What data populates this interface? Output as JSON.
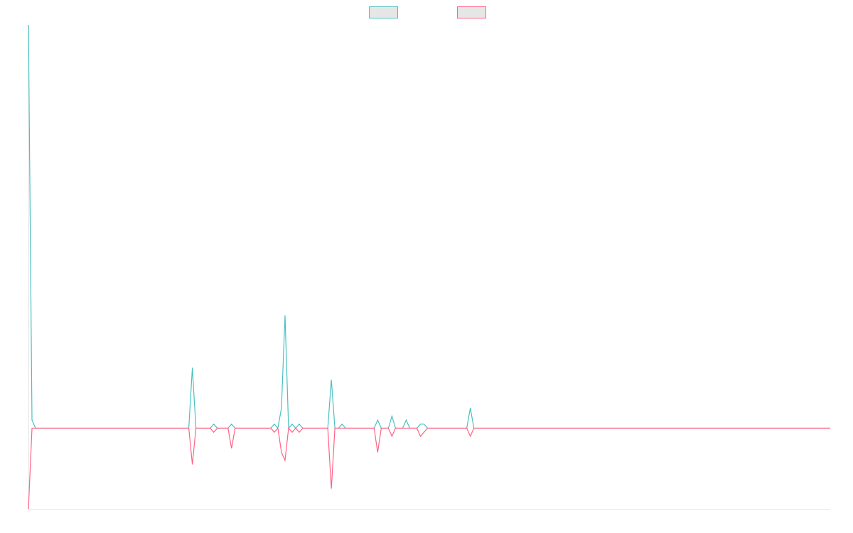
{
  "chart_data": {
    "type": "line",
    "ylim": [
      -20,
      100
    ],
    "legend": "top",
    "series": [
      {
        "color": "#4bc0c0",
        "values": [
          100,
          2,
          0,
          0,
          0,
          0,
          0,
          0,
          0,
          0,
          0,
          0,
          0,
          0,
          0,
          0,
          0,
          0,
          0,
          0,
          0,
          0,
          0,
          0,
          0,
          0,
          0,
          0,
          0,
          0,
          0,
          0,
          0,
          0,
          0,
          0,
          0,
          0,
          0,
          0,
          0,
          0,
          0,
          0,
          0,
          0,
          15,
          0,
          0,
          0,
          0,
          0,
          1,
          0,
          0,
          0,
          0,
          1,
          0,
          0,
          0,
          0,
          0,
          0,
          0,
          0,
          0,
          0,
          0,
          1,
          0,
          5,
          28,
          0,
          1,
          0,
          1,
          0,
          0,
          0,
          0,
          0,
          0,
          0,
          0,
          12,
          0,
          0,
          1,
          0,
          0,
          0,
          0,
          0,
          0,
          0,
          0,
          0,
          2,
          0,
          0,
          0,
          3,
          0,
          0,
          0,
          2,
          0,
          0,
          0,
          1,
          1,
          0,
          0,
          0,
          0,
          0,
          0,
          0,
          0,
          0,
          0,
          0,
          0,
          5,
          0,
          0,
          0,
          0,
          0,
          0,
          0,
          0,
          0,
          0,
          0,
          0,
          0,
          0,
          0,
          0,
          0,
          0,
          0,
          0,
          0,
          0,
          0,
          0,
          0,
          0,
          0,
          0,
          0,
          0,
          0,
          0,
          0,
          0,
          0,
          0,
          0,
          0,
          0,
          0,
          0,
          0,
          0,
          0,
          0,
          0,
          0,
          0,
          0,
          0,
          0,
          0,
          0,
          0,
          0,
          0,
          0,
          0,
          0,
          0,
          0,
          0,
          0,
          0,
          0,
          0,
          0,
          0,
          0,
          0,
          0,
          0,
          0,
          0,
          0,
          0,
          0,
          0,
          0,
          0,
          0,
          0,
          0,
          0,
          0,
          0,
          0,
          0,
          0,
          0,
          0,
          0,
          0,
          0,
          0,
          0,
          0,
          0,
          0,
          0,
          0
        ]
      },
      {
        "color": "#ff6384",
        "values": [
          -20,
          0,
          0,
          0,
          0,
          0,
          0,
          0,
          0,
          0,
          0,
          0,
          0,
          0,
          0,
          0,
          0,
          0,
          0,
          0,
          0,
          0,
          0,
          0,
          0,
          0,
          0,
          0,
          0,
          0,
          0,
          0,
          0,
          0,
          0,
          0,
          0,
          0,
          0,
          0,
          0,
          0,
          0,
          0,
          0,
          0,
          -9,
          0,
          0,
          0,
          0,
          0,
          -1,
          0,
          0,
          0,
          0,
          -5,
          0,
          0,
          0,
          0,
          0,
          0,
          0,
          0,
          0,
          0,
          0,
          -1,
          0,
          -6,
          -8,
          0,
          -1,
          0,
          -1,
          0,
          0,
          0,
          0,
          0,
          0,
          0,
          0,
          -15,
          0,
          0,
          0,
          0,
          0,
          0,
          0,
          0,
          0,
          0,
          0,
          0,
          -6,
          0,
          0,
          0,
          -2,
          0,
          0,
          0,
          0,
          0,
          0,
          0,
          -2,
          -1,
          0,
          0,
          0,
          0,
          0,
          0,
          0,
          0,
          0,
          0,
          0,
          0,
          -2,
          0,
          0,
          0,
          0,
          0,
          0,
          0,
          0,
          0,
          0,
          0,
          0,
          0,
          0,
          0,
          0,
          0,
          0,
          0,
          0,
          0,
          0,
          0,
          0,
          0,
          0,
          0,
          0,
          0,
          0,
          0,
          0,
          0,
          0,
          0,
          0,
          0,
          0,
          0,
          0,
          0,
          0,
          0,
          0,
          0,
          0,
          0,
          0,
          0,
          0,
          0,
          0,
          0,
          0,
          0,
          0,
          0,
          0,
          0,
          0,
          0,
          0,
          0,
          0,
          0,
          0,
          0,
          0,
          0,
          0,
          0,
          0,
          0,
          0,
          0,
          0,
          0,
          0,
          0,
          0,
          0,
          0,
          0,
          0,
          0,
          0,
          0,
          0,
          0,
          0,
          0,
          0,
          0,
          0,
          0,
          0,
          0,
          0,
          0,
          0,
          0
        ]
      }
    ]
  }
}
